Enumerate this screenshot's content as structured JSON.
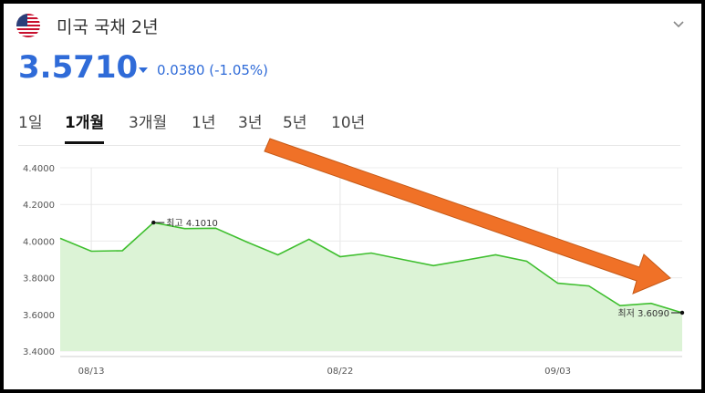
{
  "header": {
    "flag_icon": "us-flag-icon",
    "title": "미국 국채 2년",
    "collapse_icon": "chevron-down-icon"
  },
  "quote": {
    "price": "3.5710",
    "direction_icon": "triangle-down-icon",
    "change": "0.0380 (-1.05%)",
    "color": "#2f6bd8"
  },
  "tabs": [
    {
      "label": "1일",
      "active": false
    },
    {
      "label": "1개월",
      "active": true
    },
    {
      "label": "3개월",
      "active": false
    },
    {
      "label": "1년",
      "active": false
    },
    {
      "label": "3년",
      "active": false
    },
    {
      "label": "5년",
      "active": false
    },
    {
      "label": "10년",
      "active": false
    }
  ],
  "chart_data": {
    "type": "area",
    "ylim": [
      3.4,
      4.4
    ],
    "yticks": [
      "4.4000",
      "4.2000",
      "4.0000",
      "3.8000",
      "3.6000",
      "3.4000"
    ],
    "xtick_labels": [
      "08/13",
      "08/22",
      "09/03"
    ],
    "series": [
      {
        "values": [
          4.015,
          3.945,
          3.948,
          4.101,
          4.068,
          4.07,
          3.995,
          3.925,
          4.01,
          3.915,
          3.935,
          3.9,
          3.866,
          3.895,
          3.925,
          3.89,
          3.77,
          3.755,
          3.648,
          3.66,
          3.609
        ],
        "line_color": "#3fbf2f",
        "fill_color": "#dcf3d6"
      }
    ],
    "annotations": {
      "high": {
        "label": "최고 4.1010",
        "index": 3
      },
      "low": {
        "label": "최저 3.6090",
        "index": 20
      }
    },
    "overlay_arrow_color": "#f07127"
  }
}
